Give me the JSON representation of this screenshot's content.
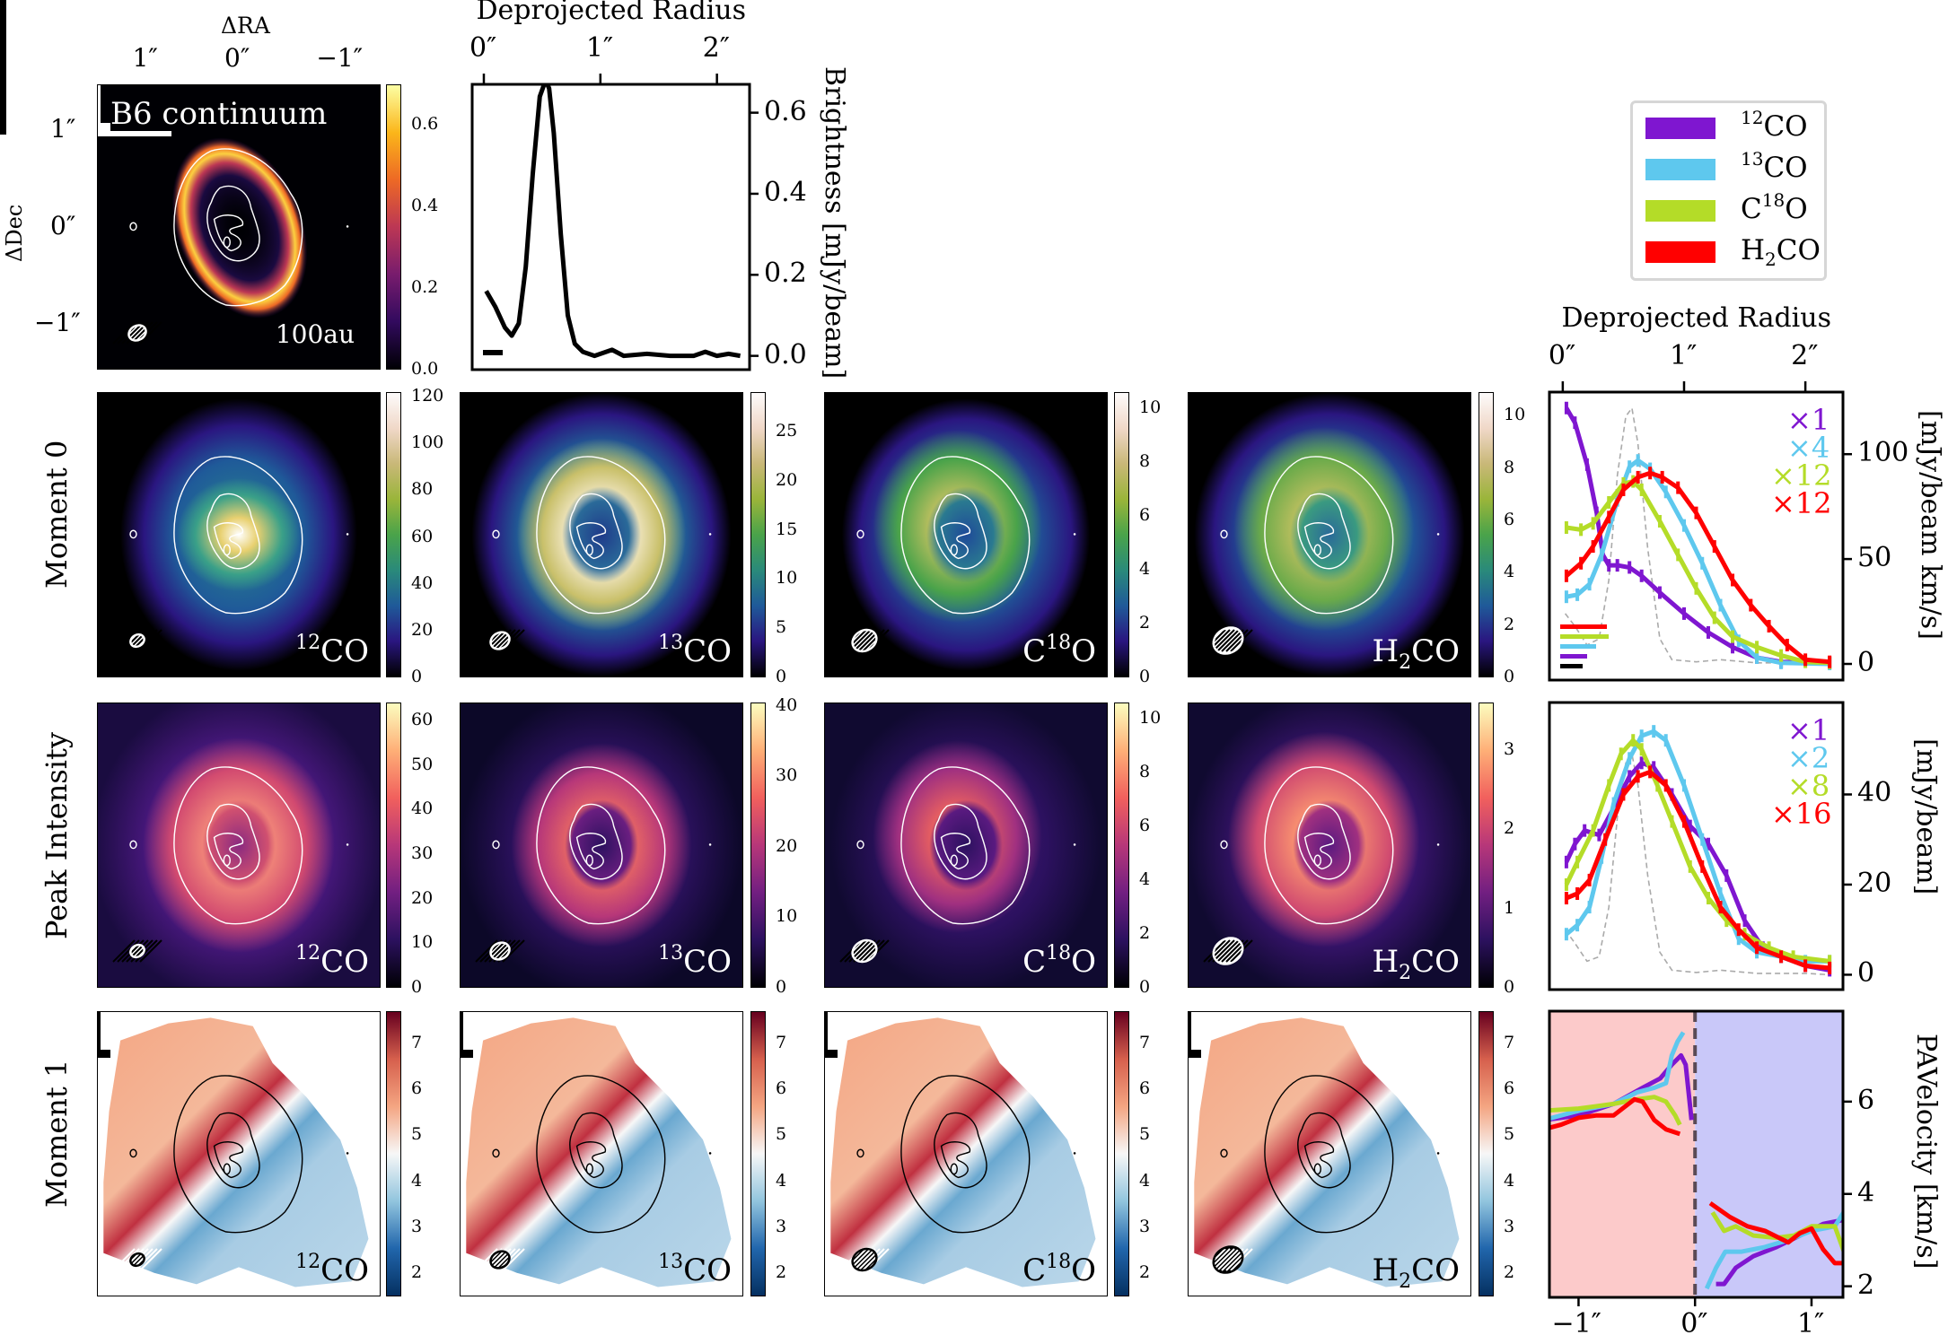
{
  "figure": {
    "ra_axis": {
      "label": "ΔRA",
      "ticks": [
        "1″",
        "0″",
        "−1″"
      ]
    },
    "dec_axis": {
      "label": "ΔDec",
      "ticks": [
        "1″",
        "0″",
        "−1″"
      ]
    },
    "row_labels": [
      "Moment 0",
      "Peak Intensity",
      "Moment 1"
    ],
    "continuum_map": {
      "label": "B6 continuum",
      "scalebar": "100au",
      "colormap": "inferno",
      "colorbar_ticks": [
        "0.0",
        "0.2",
        "0.4",
        "0.6"
      ],
      "colorbar_range": [
        0,
        0.7
      ]
    },
    "molecules": [
      {
        "name": "12CO",
        "color": "#7f16d0",
        "label": [
          {
            "t": "12",
            "s": "sup"
          },
          {
            "t": "CO"
          }
        ]
      },
      {
        "name": "13CO",
        "color": "#5ec8ee",
        "label": [
          {
            "t": "13",
            "s": "sup"
          },
          {
            "t": "CO"
          }
        ]
      },
      {
        "name": "C18O",
        "color": "#b4dc28",
        "label": [
          {
            "t": "C"
          },
          {
            "t": "18",
            "s": "sup"
          },
          {
            "t": "O"
          }
        ]
      },
      {
        "name": "H2CO",
        "color": "#ff0000",
        "label": [
          {
            "t": "H"
          },
          {
            "t": "2",
            "s": "sub"
          },
          {
            "t": "CO"
          }
        ]
      }
    ],
    "maps": {
      "moment0": {
        "colormap": "gist_earth",
        "colorbars": [
          {
            "ticks": [
              "0",
              "20",
              "40",
              "60",
              "80",
              "100",
              "120"
            ],
            "range": [
              0,
              122
            ]
          },
          {
            "ticks": [
              "0",
              "5",
              "10",
              "15",
              "20",
              "25"
            ],
            "range": [
              0,
              29
            ]
          },
          {
            "ticks": [
              "0",
              "2",
              "4",
              "6",
              "8",
              "10"
            ],
            "range": [
              0,
              10.6
            ]
          },
          {
            "ticks": [
              "0",
              "2",
              "4",
              "6",
              "8",
              "10"
            ],
            "range": [
              0,
              10.9
            ]
          }
        ]
      },
      "peak_intensity": {
        "colormap": "magma",
        "colorbars": [
          {
            "ticks": [
              "0",
              "10",
              "20",
              "30",
              "40",
              "50",
              "60"
            ],
            "range": [
              0,
              64
            ]
          },
          {
            "ticks": [
              "0",
              "10",
              "20",
              "30",
              "40"
            ],
            "range": [
              0,
              40.5
            ]
          },
          {
            "ticks": [
              "0",
              "2",
              "4",
              "6",
              "8",
              "10"
            ],
            "range": [
              0,
              10.6
            ]
          },
          {
            "ticks": [
              "0",
              "1",
              "2",
              "3"
            ],
            "range": [
              0,
              3.6
            ]
          }
        ]
      },
      "moment1": {
        "colormap": "RdBu_r",
        "colorbars": [
          {
            "ticks": [
              "2",
              "3",
              "4",
              "5",
              "6",
              "7"
            ],
            "range": [
              1.5,
              7.7
            ]
          },
          {
            "ticks": [
              "2",
              "3",
              "4",
              "5",
              "6",
              "7"
            ],
            "range": [
              1.5,
              7.7
            ]
          },
          {
            "ticks": [
              "2",
              "3",
              "4",
              "5",
              "6",
              "7"
            ],
            "range": [
              1.5,
              7.7
            ]
          },
          {
            "ticks": [
              "2",
              "3",
              "4",
              "5",
              "6",
              "7"
            ],
            "range": [
              1.5,
              7.7
            ]
          }
        ]
      }
    }
  },
  "chart_data": [
    {
      "type": "line",
      "id": "continuum_profile",
      "xlabel": "Deprojected Radius",
      "ylabel": "Brightness [mJy/beam]",
      "xticks": [
        "0″",
        "1″",
        "2″"
      ],
      "xtick_values": [
        0,
        1,
        2
      ],
      "yticks": [
        "0.0",
        "0.2",
        "0.4",
        "0.6"
      ],
      "ytick_values": [
        0,
        0.2,
        0.4,
        0.6
      ],
      "xlim": [
        -0.1,
        2.28
      ],
      "ylim": [
        -0.034,
        0.67
      ],
      "series": [
        {
          "color": "#000000",
          "x": [
            0.02,
            0.1,
            0.18,
            0.24,
            0.3,
            0.36,
            0.42,
            0.48,
            0.53,
            0.56,
            0.6,
            0.66,
            0.72,
            0.78,
            0.85,
            0.95,
            1.05,
            1.1,
            1.2,
            1.4,
            1.6,
            1.8,
            1.9,
            2.0,
            2.1,
            2.2
          ],
          "y": [
            0.16,
            0.12,
            0.07,
            0.05,
            0.08,
            0.22,
            0.45,
            0.64,
            0.68,
            0.66,
            0.55,
            0.3,
            0.1,
            0.03,
            0.01,
            0.0,
            0.01,
            0.015,
            0.0,
            0.005,
            0.0,
            0.0,
            0.01,
            0.0,
            0.005,
            0.0
          ]
        }
      ]
    },
    {
      "type": "line",
      "id": "moment0_profile",
      "xlabel": "Deprojected Radius",
      "ylabel": "[mJy/beam km/s]",
      "xticks": [
        "0″",
        "1″",
        "2″"
      ],
      "xtick_values": [
        0,
        1,
        2
      ],
      "yticks": [
        "0",
        "50",
        "100"
      ],
      "ytick_values": [
        0,
        50,
        100
      ],
      "xlim": [
        -0.11,
        2.31
      ],
      "ylim": [
        -7.7,
        129.6
      ],
      "multipliers": [
        "×1",
        "×4",
        "×12",
        "×12"
      ],
      "series": [
        {
          "name": "12CO",
          "color": "#7f16d0",
          "x": [
            0.03,
            0.1,
            0.2,
            0.28,
            0.33,
            0.38,
            0.45,
            0.55,
            0.65,
            0.8,
            1.0,
            1.2,
            1.4,
            1.6,
            1.8,
            2.2
          ],
          "y": [
            122,
            115,
            95,
            72,
            52,
            47,
            47,
            46,
            42,
            34,
            24,
            15,
            8,
            3,
            1,
            0.5
          ]
        },
        {
          "name": "13CO",
          "color": "#5ec8ee",
          "x": [
            0.03,
            0.12,
            0.22,
            0.32,
            0.45,
            0.55,
            0.62,
            0.72,
            0.85,
            1.0,
            1.15,
            1.3,
            1.45,
            1.6,
            1.8,
            2.2
          ],
          "y": [
            32,
            33,
            38,
            52,
            78,
            94,
            97,
            93,
            82,
            66,
            48,
            28,
            11,
            3,
            0.5,
            0
          ]
        },
        {
          "name": "C18O",
          "color": "#b4dc28",
          "x": [
            0.03,
            0.15,
            0.25,
            0.38,
            0.5,
            0.58,
            0.65,
            0.8,
            0.95,
            1.1,
            1.25,
            1.4,
            1.6,
            1.8,
            2.0,
            2.2
          ],
          "y": [
            65,
            64,
            67,
            77,
            86,
            87,
            83,
            68,
            52,
            36,
            22,
            13,
            8,
            4,
            1,
            0.5
          ]
        },
        {
          "name": "H2CO",
          "color": "#ff0000",
          "x": [
            0.03,
            0.15,
            0.25,
            0.38,
            0.5,
            0.62,
            0.72,
            0.82,
            0.95,
            1.1,
            1.25,
            1.4,
            1.55,
            1.7,
            1.85,
            2.0,
            2.2
          ],
          "y": [
            42,
            48,
            56,
            70,
            83,
            89,
            91,
            89,
            84,
            72,
            56,
            40,
            28,
            18,
            9,
            2,
            1
          ]
        },
        {
          "name": "continuum (scaled)",
          "color": "#aaaaaa",
          "dashed": true,
          "x": [
            0.02,
            0.1,
            0.2,
            0.3,
            0.38,
            0.45,
            0.52,
            0.57,
            0.62,
            0.7,
            0.8,
            0.9,
            1.1,
            1.3,
            1.6,
            2.0,
            2.2
          ],
          "y": [
            24,
            18,
            9,
            12,
            40,
            90,
            118,
            122,
            105,
            55,
            12,
            2,
            1,
            2,
            0.5,
            0.5,
            0
          ]
        }
      ]
    },
    {
      "type": "line",
      "id": "peak_intensity_profile",
      "xlabel": "",
      "ylabel": "[mJy/beam]",
      "yticks": [
        "0",
        "20",
        "40"
      ],
      "ytick_values": [
        0,
        20,
        40
      ],
      "xlim": [
        -0.11,
        2.31
      ],
      "ylim": [
        -3.3,
        60.4
      ],
      "multipliers": [
        "×1",
        "×2",
        "×8",
        "×16"
      ],
      "series": [
        {
          "name": "12CO",
          "color": "#7f16d0",
          "x": [
            0.03,
            0.1,
            0.18,
            0.3,
            0.42,
            0.55,
            0.65,
            0.75,
            0.9,
            1.05,
            1.2,
            1.35,
            1.5,
            1.65,
            1.8,
            2.0,
            2.2
          ],
          "y": [
            25,
            29,
            32,
            31,
            37,
            44,
            47,
            46,
            40,
            33,
            29,
            22,
            12,
            6,
            4,
            2,
            1
          ]
        },
        {
          "name": "13CO",
          "color": "#5ec8ee",
          "x": [
            0.03,
            0.12,
            0.22,
            0.32,
            0.42,
            0.55,
            0.65,
            0.75,
            0.85,
            1.0,
            1.15,
            1.3,
            1.45,
            1.6,
            1.8,
            2.0,
            2.2
          ],
          "y": [
            9,
            11,
            15,
            26,
            38,
            48,
            53,
            54,
            52,
            42,
            30,
            18,
            8,
            5,
            4,
            3,
            3
          ]
        },
        {
          "name": "C18O",
          "color": "#b4dc28",
          "x": [
            0.03,
            0.12,
            0.25,
            0.38,
            0.48,
            0.58,
            0.65,
            0.78,
            0.9,
            1.05,
            1.2,
            1.35,
            1.5,
            1.7,
            1.9,
            2.2
          ],
          "y": [
            20,
            25,
            32,
            42,
            49,
            52,
            50,
            42,
            34,
            24,
            17,
            12,
            9,
            6,
            4,
            3
          ]
        },
        {
          "name": "H2CO",
          "color": "#ff0000",
          "x": [
            0.03,
            0.12,
            0.22,
            0.35,
            0.5,
            0.62,
            0.72,
            0.85,
            1.0,
            1.15,
            1.3,
            1.45,
            1.6,
            1.8,
            2.0,
            2.2
          ],
          "y": [
            17,
            18,
            21,
            30,
            40,
            44,
            45,
            42,
            34,
            24,
            15,
            10,
            6,
            4,
            2,
            1.5
          ]
        },
        {
          "name": "continuum (scaled)",
          "color": "#aaaaaa",
          "dashed": true,
          "x": [
            0.02,
            0.1,
            0.2,
            0.3,
            0.38,
            0.45,
            0.52,
            0.57,
            0.62,
            0.7,
            0.8,
            0.9,
            1.1,
            1.3,
            1.6,
            2.0,
            2.2
          ],
          "y": [
            10,
            7,
            3,
            4,
            15,
            35,
            47,
            49,
            42,
            22,
            5,
            1,
            0.5,
            1,
            0.3,
            0.3,
            0
          ]
        }
      ]
    },
    {
      "type": "line",
      "id": "pv_profile",
      "xlabel": "",
      "ylabel": "PAVelocity [km/s]",
      "xticks": [
        "−1″",
        "0″",
        "1″"
      ],
      "xtick_values": [
        -1,
        0,
        1
      ],
      "yticks": [
        "2",
        "4",
        "6"
      ],
      "ytick_values": [
        2,
        4,
        6
      ],
      "xlim": [
        -1.25,
        1.27
      ],
      "ylim": [
        1.76,
        7.96
      ],
      "background": {
        "left": "#fccaca",
        "right": "#c9c8f9",
        "divider": "#5a4a55"
      },
      "series": [
        {
          "name": "12CO",
          "color": "#7f16d0",
          "segments": [
            {
              "x": [
                -1.3,
                -1.0,
                -0.7,
                -0.45,
                -0.3,
                -0.2,
                -0.12,
                -0.08,
                -0.03
              ],
              "y": [
                5.6,
                5.7,
                5.95,
                6.3,
                6.5,
                6.8,
                7.0,
                6.8,
                5.6
              ]
            },
            {
              "x": [
                0.18,
                0.25,
                0.35,
                0.5,
                0.7,
                0.9,
                1.1,
                1.3
              ],
              "y": [
                2.05,
                2.05,
                2.4,
                2.65,
                2.85,
                3.1,
                3.35,
                3.45
              ]
            }
          ]
        },
        {
          "name": "13CO",
          "color": "#5ec8ee",
          "segments": [
            {
              "x": [
                -1.3,
                -1.0,
                -0.7,
                -0.5,
                -0.35,
                -0.25,
                -0.2,
                -0.15,
                -0.1
              ],
              "y": [
                5.6,
                5.8,
                5.95,
                6.2,
                6.3,
                6.4,
                7.0,
                7.3,
                7.5
              ]
            },
            {
              "x": [
                0.1,
                0.18,
                0.26,
                0.4,
                0.6,
                0.8,
                1.0,
                1.2,
                1.3
              ],
              "y": [
                1.95,
                2.4,
                2.75,
                2.75,
                2.85,
                3.0,
                3.2,
                3.3,
                3.7
              ]
            }
          ]
        },
        {
          "name": "C18O",
          "color": "#b4dc28",
          "segments": [
            {
              "x": [
                -1.3,
                -1.0,
                -0.7,
                -0.5,
                -0.35,
                -0.25,
                -0.17,
                -0.13
              ],
              "y": [
                5.8,
                5.85,
                5.95,
                6.05,
                6.1,
                6.0,
                5.7,
                5.5
              ]
            },
            {
              "x": [
                0.15,
                0.25,
                0.35,
                0.5,
                0.7,
                0.85,
                1.0,
                1.2,
                1.3,
                1.3
              ],
              "y": [
                3.6,
                3.2,
                3.3,
                3.1,
                3.05,
                3.1,
                3.3,
                3.3,
                2.6,
                2.2
              ]
            }
          ]
        },
        {
          "name": "H2CO",
          "color": "#ff0000",
          "segments": [
            {
              "x": [
                -1.3,
                -1.15,
                -1.0,
                -0.85,
                -0.7,
                -0.52,
                -0.45,
                -0.35,
                -0.25,
                -0.13
              ],
              "y": [
                5.4,
                5.5,
                5.65,
                5.7,
                5.7,
                6.05,
                6.0,
                5.6,
                5.4,
                5.3
              ]
            },
            {
              "x": [
                0.13,
                0.3,
                0.45,
                0.6,
                0.8,
                0.9,
                1.0,
                1.1,
                1.2,
                1.3
              ],
              "y": [
                3.8,
                3.5,
                3.3,
                3.2,
                2.95,
                3.15,
                3.25,
                2.8,
                2.5,
                2.5
              ]
            }
          ]
        }
      ]
    }
  ]
}
